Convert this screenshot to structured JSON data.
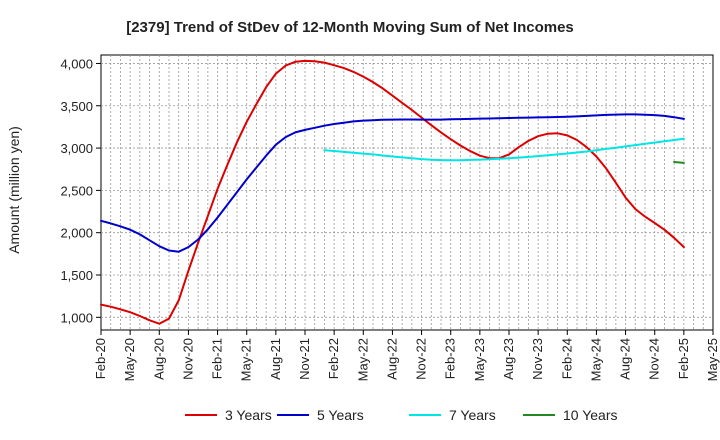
{
  "chart_data": {
    "type": "line",
    "title": "[2379]  Trend of StDev of 12-Month Moving Sum of Net Incomes",
    "xlabel": "",
    "ylabel": "Amount (million yen)",
    "ylim": [
      850,
      4100
    ],
    "yticks": [
      1000,
      1500,
      2000,
      2500,
      3000,
      3500,
      4000
    ],
    "ytick_labels": [
      "1,000",
      "1,500",
      "2,000",
      "2,500",
      "3,000",
      "3,500",
      "4,000"
    ],
    "xlim": [
      "2020-02",
      "2025-05"
    ],
    "xtick_labels": [
      "Feb-20",
      "May-20",
      "Aug-20",
      "Nov-20",
      "Feb-21",
      "May-21",
      "Aug-21",
      "Nov-21",
      "Feb-22",
      "May-22",
      "Aug-22",
      "Nov-22",
      "Feb-23",
      "May-23",
      "Aug-23",
      "Nov-23",
      "Feb-24",
      "May-24",
      "Aug-24",
      "Nov-24",
      "Feb-25",
      "May-25"
    ],
    "grid": true,
    "legend_position": "bottom",
    "series": [
      {
        "name": "3 Years",
        "color": "#dd0000",
        "x": [
          "2020-02",
          "2020-03",
          "2020-04",
          "2020-05",
          "2020-06",
          "2020-07",
          "2020-08",
          "2020-09",
          "2020-10",
          "2020-11",
          "2020-12",
          "2021-01",
          "2021-02",
          "2021-03",
          "2021-04",
          "2021-05",
          "2021-06",
          "2021-07",
          "2021-08",
          "2021-09",
          "2021-10",
          "2021-11",
          "2021-12",
          "2022-01",
          "2022-02",
          "2022-03",
          "2022-04",
          "2022-05",
          "2022-06",
          "2022-07",
          "2022-08",
          "2022-09",
          "2022-10",
          "2022-11",
          "2022-12",
          "2023-01",
          "2023-02",
          "2023-03",
          "2023-04",
          "2023-05",
          "2023-06",
          "2023-07",
          "2023-08",
          "2023-09",
          "2023-10",
          "2023-11",
          "2023-12",
          "2024-01",
          "2024-02",
          "2024-03",
          "2024-04",
          "2024-05",
          "2024-06",
          "2024-07",
          "2024-08",
          "2024-09",
          "2024-10",
          "2024-11",
          "2024-12",
          "2025-01",
          "2025-02"
        ],
        "values": [
          1150,
          1125,
          1095,
          1060,
          1015,
          965,
          925,
          985,
          1200,
          1550,
          1880,
          2200,
          2520,
          2800,
          3070,
          3310,
          3520,
          3720,
          3880,
          3975,
          4020,
          4030,
          4025,
          4010,
          3980,
          3945,
          3900,
          3845,
          3780,
          3705,
          3620,
          3535,
          3450,
          3360,
          3270,
          3185,
          3105,
          3030,
          2965,
          2910,
          2880,
          2880,
          2925,
          3010,
          3085,
          3140,
          3170,
          3175,
          3150,
          3095,
          3010,
          2900,
          2760,
          2590,
          2415,
          2280,
          2190,
          2115,
          2035,
          1940,
          1830
        ]
      },
      {
        "name": "5 Years",
        "color": "#0000cc",
        "x": [
          "2020-02",
          "2020-03",
          "2020-04",
          "2020-05",
          "2020-06",
          "2020-07",
          "2020-08",
          "2020-09",
          "2020-10",
          "2020-11",
          "2020-12",
          "2021-01",
          "2021-02",
          "2021-03",
          "2021-04",
          "2021-05",
          "2021-06",
          "2021-07",
          "2021-08",
          "2021-09",
          "2021-10",
          "2021-11",
          "2021-12",
          "2022-01",
          "2022-02",
          "2022-03",
          "2022-04",
          "2022-05",
          "2022-06",
          "2022-07",
          "2022-08",
          "2022-09",
          "2022-10",
          "2022-11",
          "2022-12",
          "2023-01",
          "2023-02",
          "2023-03",
          "2023-04",
          "2023-05",
          "2023-06",
          "2023-07",
          "2023-08",
          "2023-09",
          "2023-10",
          "2023-11",
          "2023-12",
          "2024-01",
          "2024-02",
          "2024-03",
          "2024-04",
          "2024-05",
          "2024-06",
          "2024-07",
          "2024-08",
          "2024-09",
          "2024-10",
          "2024-11",
          "2024-12",
          "2025-01",
          "2025-02"
        ],
        "values": [
          2140,
          2110,
          2075,
          2035,
          1980,
          1910,
          1840,
          1790,
          1775,
          1830,
          1920,
          2040,
          2180,
          2330,
          2480,
          2630,
          2770,
          2910,
          3040,
          3130,
          3185,
          3215,
          3240,
          3265,
          3285,
          3300,
          3315,
          3325,
          3330,
          3335,
          3337,
          3338,
          3338,
          3337,
          3336,
          3337,
          3340,
          3342,
          3345,
          3348,
          3350,
          3352,
          3355,
          3358,
          3360,
          3362,
          3365,
          3367,
          3370,
          3374,
          3380,
          3386,
          3392,
          3396,
          3398,
          3398,
          3395,
          3390,
          3380,
          3365,
          3345
        ]
      },
      {
        "name": "7 Years",
        "color": "#00e5e5",
        "x": [
          "2022-01",
          "2022-02",
          "2022-03",
          "2022-04",
          "2022-05",
          "2022-06",
          "2022-07",
          "2022-08",
          "2022-09",
          "2022-10",
          "2022-11",
          "2022-12",
          "2023-01",
          "2023-02",
          "2023-03",
          "2023-04",
          "2023-05",
          "2023-06",
          "2023-07",
          "2023-08",
          "2023-09",
          "2023-10",
          "2023-11",
          "2023-12",
          "2024-01",
          "2024-02",
          "2024-03",
          "2024-04",
          "2024-05",
          "2024-06",
          "2024-07",
          "2024-08",
          "2024-09",
          "2024-10",
          "2024-11",
          "2024-12",
          "2025-01",
          "2025-02"
        ],
        "values": [
          2975,
          2965,
          2955,
          2945,
          2935,
          2925,
          2912,
          2900,
          2890,
          2880,
          2870,
          2862,
          2858,
          2856,
          2857,
          2860,
          2864,
          2868,
          2874,
          2880,
          2888,
          2896,
          2905,
          2915,
          2925,
          2936,
          2948,
          2960,
          2975,
          2990,
          3005,
          3020,
          3035,
          3050,
          3065,
          3080,
          3095,
          3110
        ]
      },
      {
        "name": "10 Years",
        "color": "#228822",
        "x": [
          "2025-01",
          "2025-02"
        ],
        "values": [
          2835,
          2825
        ]
      }
    ]
  }
}
